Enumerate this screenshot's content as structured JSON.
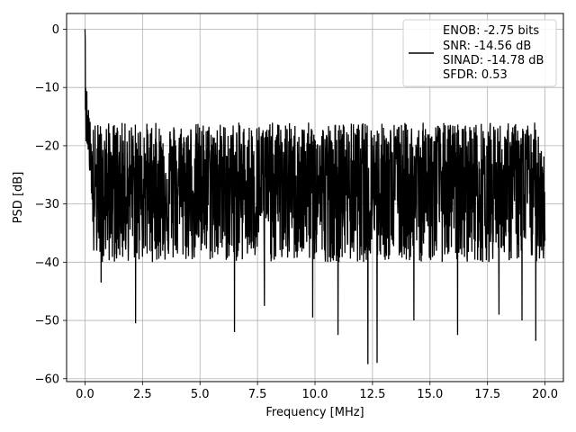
{
  "chart_data": {
    "type": "line",
    "title": "",
    "xlabel": "Frequency [MHz]",
    "ylabel": "PSD [dB]",
    "xlim": [
      -0.8,
      20.8
    ],
    "ylim": [
      -60.5,
      2.7
    ],
    "xticks": [
      0.0,
      2.5,
      5.0,
      7.5,
      10.0,
      12.5,
      15.0,
      17.5,
      20.0
    ],
    "xtick_labels": [
      "0.0",
      "2.5",
      "5.0",
      "7.5",
      "10.0",
      "12.5",
      "15.0",
      "17.5",
      "20.0"
    ],
    "yticks": [
      0,
      -10,
      -20,
      -30,
      -40,
      -50,
      -60
    ],
    "ytick_labels": [
      "0",
      "−10",
      "−20",
      "−30",
      "−40",
      "−50",
      "−60"
    ],
    "grid": true,
    "legend_position": "top-right",
    "series": [
      {
        "color": "#000000",
        "x_range": [
          0,
          20
        ],
        "peak": {
          "x": 0.0,
          "y": 0
        },
        "noise_floor_mean": -27,
        "upper_envelope": -16,
        "typical_min": -40,
        "deep_nulls": [
          {
            "x": 0.7,
            "y": -43.5
          },
          {
            "x": 2.2,
            "y": -50.5
          },
          {
            "x": 6.5,
            "y": -52
          },
          {
            "x": 7.8,
            "y": -47.5
          },
          {
            "x": 9.9,
            "y": -49.5
          },
          {
            "x": 11.0,
            "y": -52.5
          },
          {
            "x": 12.3,
            "y": -57.5
          },
          {
            "x": 12.7,
            "y": -57.3
          },
          {
            "x": 14.3,
            "y": -50
          },
          {
            "x": 16.2,
            "y": -52.5
          },
          {
            "x": 18.0,
            "y": -49
          },
          {
            "x": 19.0,
            "y": -50
          },
          {
            "x": 19.6,
            "y": -53.5
          }
        ]
      }
    ],
    "legend_lines": [
      "ENOB: -2.75 bits",
      "SNR: -14.56 dB",
      "SINAD: -14.78 dB",
      "SFDR: 0.53"
    ]
  }
}
